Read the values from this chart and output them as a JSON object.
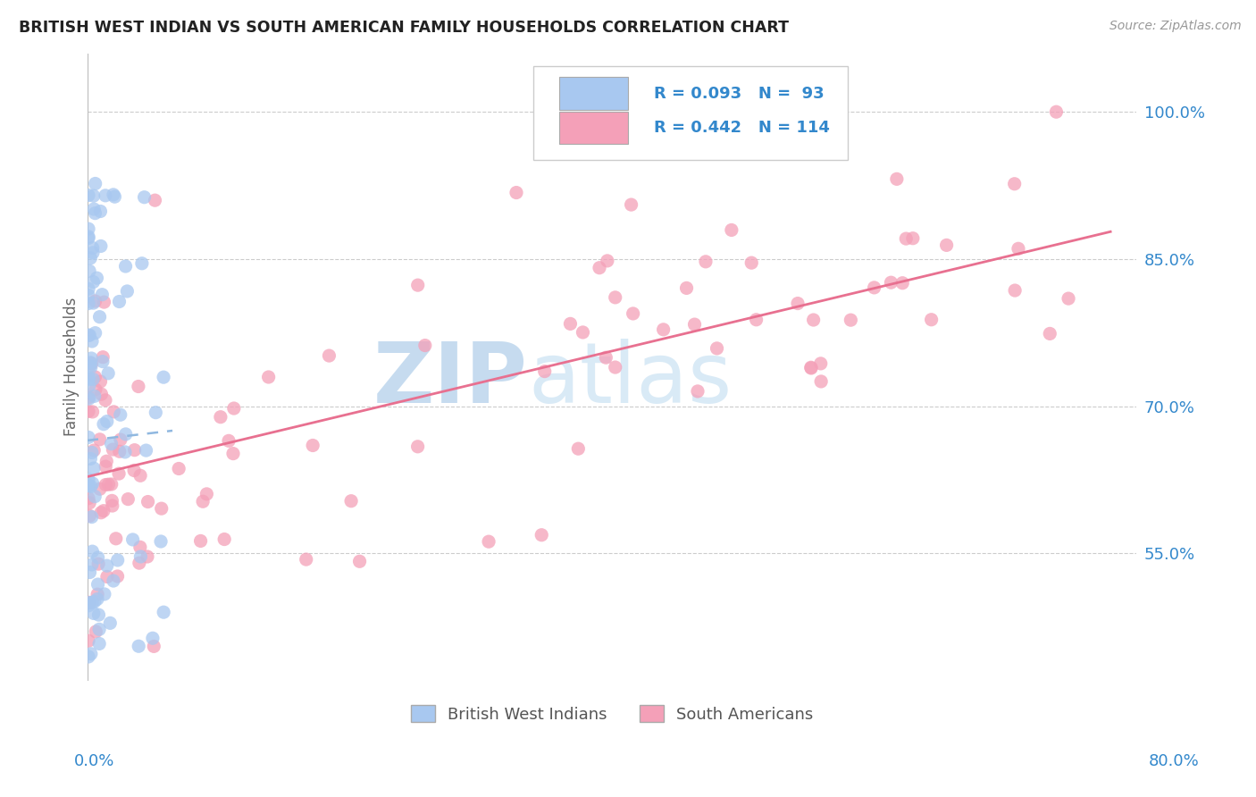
{
  "title": "BRITISH WEST INDIAN VS SOUTH AMERICAN FAMILY HOUSEHOLDS CORRELATION CHART",
  "source": "Source: ZipAtlas.com",
  "ylabel": "Family Households",
  "ytick_vals": [
    0.55,
    0.7,
    0.85,
    1.0
  ],
  "ytick_labels": [
    "55.0%",
    "70.0%",
    "85.0%",
    "100.0%"
  ],
  "xmin": 0.0,
  "xmax": 0.8,
  "ymin": 0.42,
  "ymax": 1.06,
  "legend_r_blue": "R = 0.093",
  "legend_n_blue": "N =  93",
  "legend_r_pink": "R = 0.442",
  "legend_n_pink": "N = 114",
  "blue_color": "#a8c8f0",
  "pink_color": "#f4a0b8",
  "blue_line_color": "#90b8e0",
  "pink_line_color": "#e87090",
  "text_blue_color": "#3388cc",
  "watermark_zip_color": "#c8dff0",
  "watermark_atlas_color": "#d8eaf8",
  "blue_trend_x0": 0.0,
  "blue_trend_x1": 0.065,
  "blue_trend_y0": 0.665,
  "blue_trend_y1": 0.675,
  "pink_trend_x0": 0.0,
  "pink_trend_x1": 0.78,
  "pink_trend_y0": 0.628,
  "pink_trend_y1": 0.878
}
